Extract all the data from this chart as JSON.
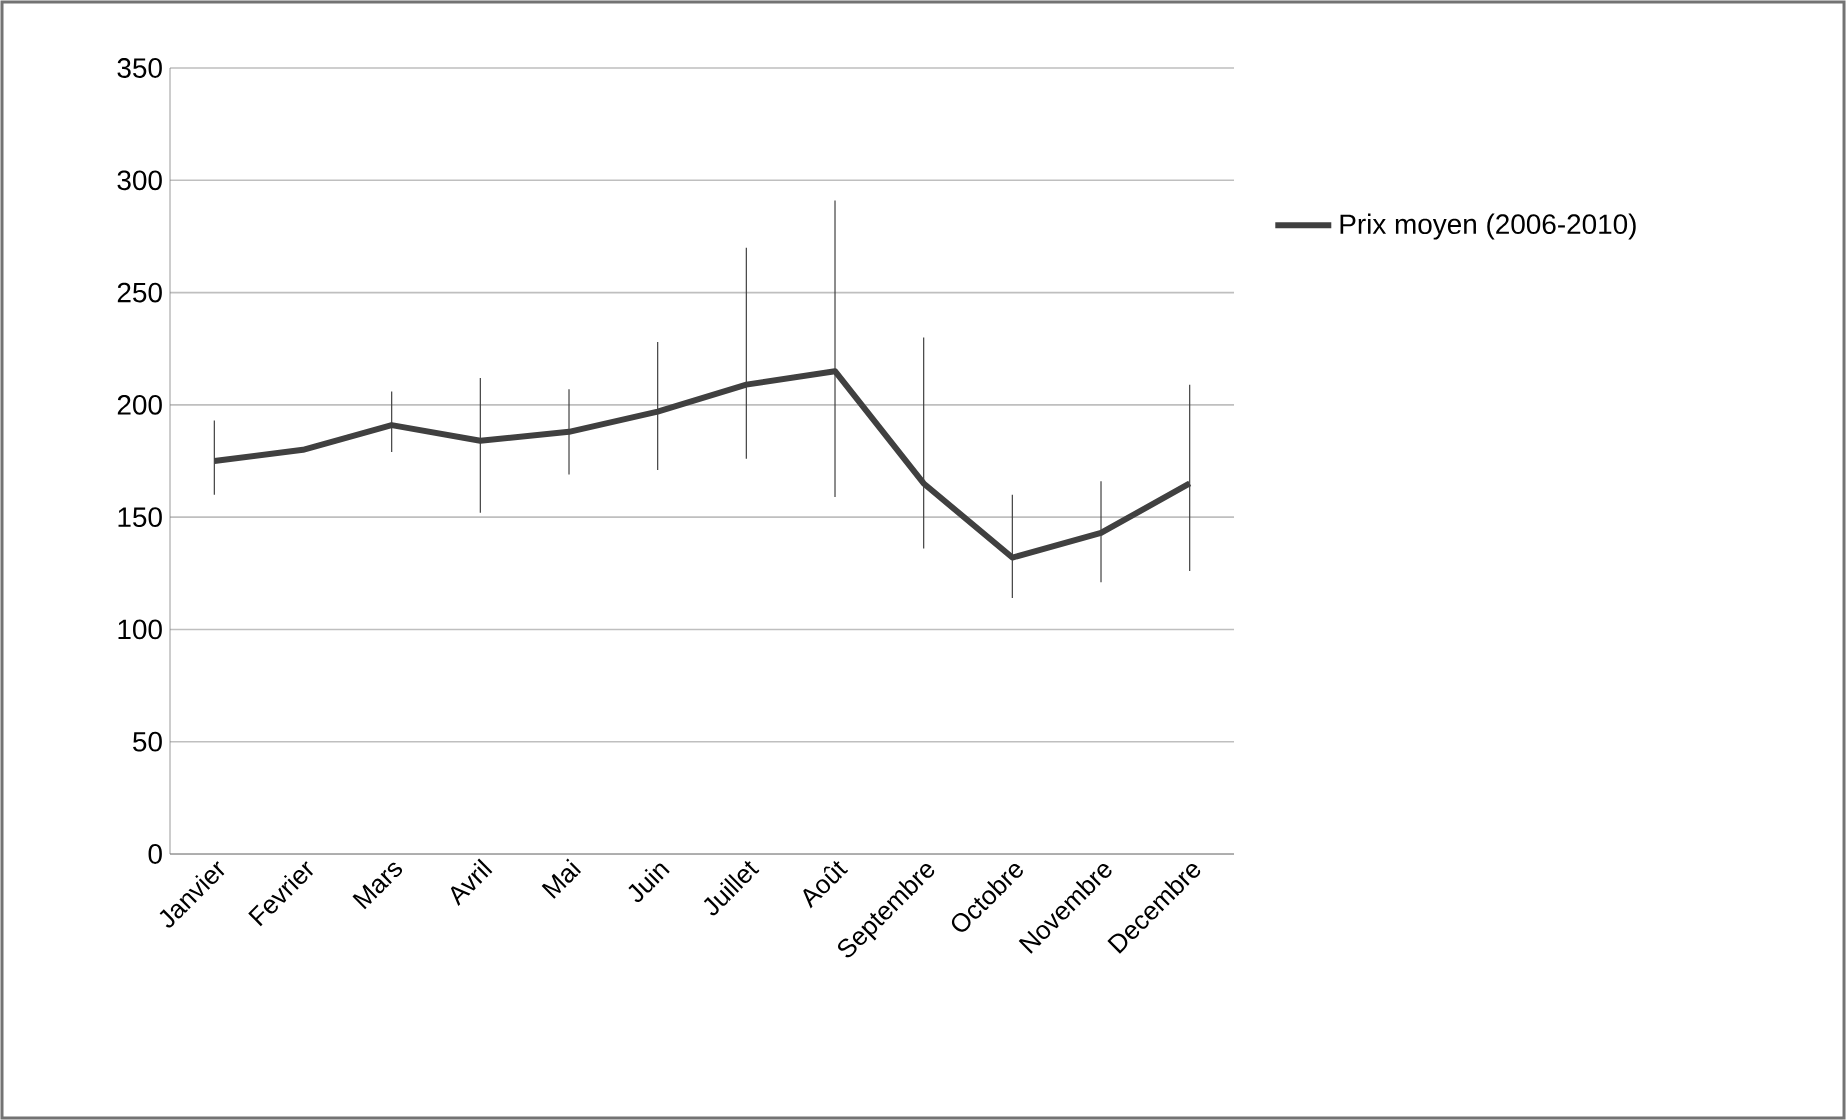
{
  "chart_data": {
    "type": "line",
    "categories": [
      "Janvier",
      "Fevrier",
      "Mars",
      "Avril",
      "Mai",
      "Juin",
      "Juillet",
      "Août",
      "Septembre",
      "Octobre",
      "Novembre",
      "Decembre"
    ],
    "series": [
      {
        "name": "Prix moyen (2006-2010)",
        "color": "#404040",
        "values": [
          175,
          180,
          191,
          184,
          188,
          197,
          209,
          215,
          165,
          132,
          143,
          165
        ],
        "errors": [
          [
            160,
            193
          ],
          null,
          [
            179,
            206
          ],
          [
            152,
            212
          ],
          [
            169,
            207
          ],
          [
            171,
            228
          ],
          [
            176,
            270
          ],
          [
            159,
            291
          ],
          [
            136,
            230
          ],
          [
            114,
            160
          ],
          [
            121,
            166
          ],
          [
            126,
            209
          ]
        ]
      }
    ],
    "ylim": [
      0,
      350
    ],
    "yticks": [
      0,
      50,
      100,
      150,
      200,
      250,
      300,
      350
    ],
    "grid": "y",
    "legend": "right",
    "marker": "none",
    "line_style": "solid"
  }
}
